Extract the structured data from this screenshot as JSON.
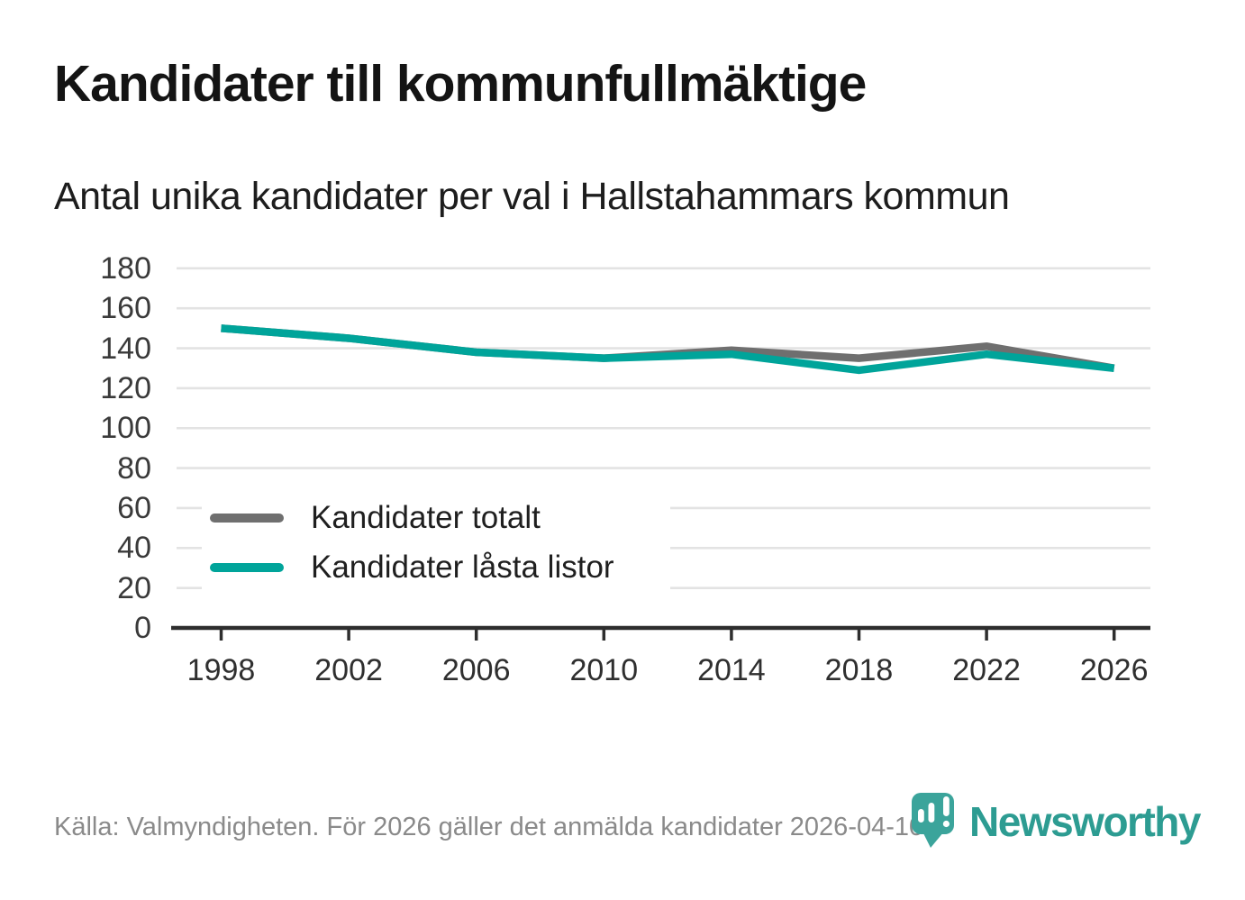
{
  "chart_data": {
    "type": "line",
    "title": "Kandidater till kommunfullmäktige",
    "subtitle": "Antal unika kandidater per val i Hallstahammars kommun",
    "x": [
      1998,
      2002,
      2006,
      2010,
      2014,
      2018,
      2022,
      2026
    ],
    "series": [
      {
        "name": "Kandidater totalt",
        "color": "#6f6f6f",
        "values": [
          150,
          145,
          138,
          135,
          139,
          135,
          141,
          130
        ]
      },
      {
        "name": "Kandidater låsta listor",
        "color": "#00a49a",
        "values": [
          150,
          145,
          138,
          135,
          137,
          129,
          137,
          130
        ]
      }
    ],
    "ylim": [
      0,
      180
    ],
    "ytick_step": 20,
    "xlabel": "",
    "ylabel": "",
    "grid": true,
    "legend_position": "inside bottom-left"
  },
  "footer": {
    "source": "Källa: Valmyndigheten. För 2026 gäller det anmälda kandidater 2026-04-10.",
    "brand": "Newsworthy"
  },
  "colors": {
    "accent_teal": "#00a49a",
    "series_gray": "#6f6f6f",
    "gridline": "#e3e3e3",
    "axis": "#2e2e2e",
    "text": "#141414",
    "muted_text": "#8a8a8a",
    "logo_bubble_teal": "#3ba49b",
    "logo_wordmark_teal": "#2d9c92"
  }
}
